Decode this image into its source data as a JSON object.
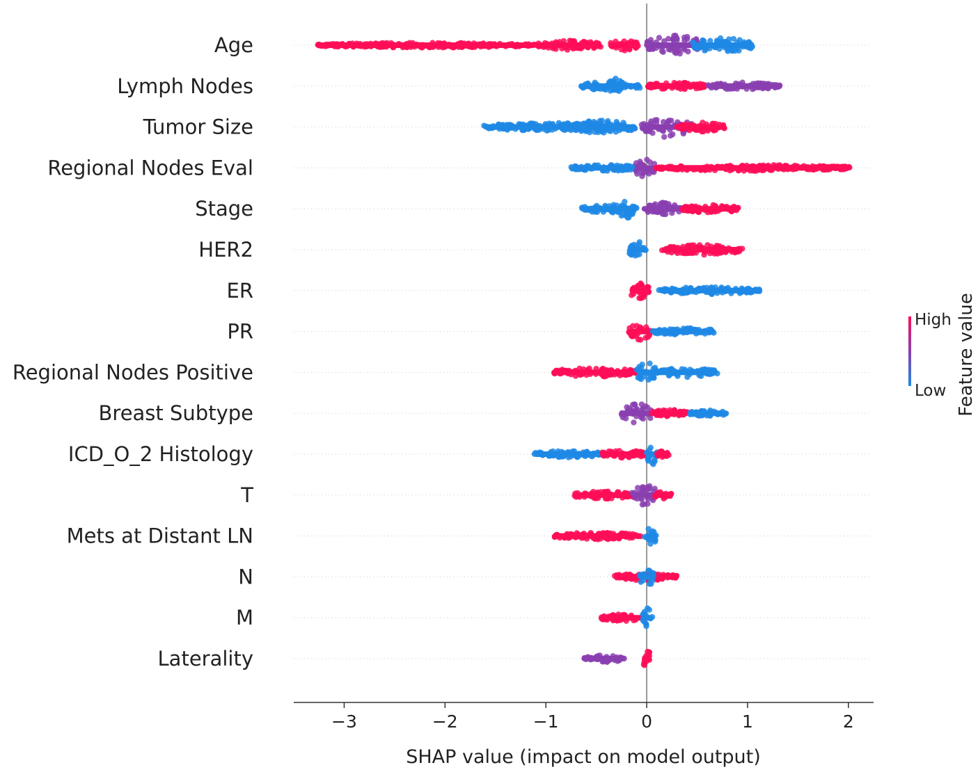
{
  "chart_data": {
    "type": "scatter",
    "subtype": "shap-beeswarm",
    "title": "",
    "xlabel": "SHAP value (impact on model output)",
    "ylabel": "",
    "xlim": [
      -3.5,
      2.25
    ],
    "xticks": [
      -3,
      -2,
      -1,
      0,
      1,
      2
    ],
    "xtick_labels": [
      "−3",
      "−2",
      "−1",
      "0",
      "1",
      "2"
    ],
    "grid": false,
    "colors": {
      "high": "#ff0d57",
      "low": "#1e88e5",
      "mid": "#8a3fb0",
      "zero_line": "#999999",
      "axis": "#333333"
    },
    "colorbar": {
      "title": "Feature value",
      "high_label": "High",
      "low_label": "Low"
    },
    "features": [
      {
        "name": "Age",
        "segments": [
          {
            "from": -3.28,
            "to": -1.12,
            "color": "high",
            "spread": 0.25
          },
          {
            "from": -1.12,
            "to": -0.45,
            "color": "high",
            "spread": 0.45
          },
          {
            "from": -0.38,
            "to": -0.08,
            "color": "high",
            "spread": 0.55
          },
          {
            "from": 0.0,
            "to": 0.55,
            "color": "mid",
            "spread": 1.0
          },
          {
            "from": 0.45,
            "to": 1.05,
            "color": "low",
            "spread": 0.75
          }
        ]
      },
      {
        "name": "Lymph Nodes",
        "segments": [
          {
            "from": -0.65,
            "to": -0.05,
            "color": "low",
            "spread": 0.45
          },
          {
            "from": -0.38,
            "to": -0.25,
            "color": "low",
            "spread": 0.9
          },
          {
            "from": 0.0,
            "to": 0.6,
            "color": "high",
            "spread": 0.35
          },
          {
            "from": 0.6,
            "to": 1.32,
            "color": "mid",
            "spread": 0.35
          }
        ]
      },
      {
        "name": "Tumor Size",
        "segments": [
          {
            "from": -1.62,
            "to": -0.2,
            "color": "low",
            "spread": 0.4
          },
          {
            "from": -0.85,
            "to": -0.1,
            "color": "low",
            "spread": 0.65
          },
          {
            "from": -0.05,
            "to": 0.45,
            "color": "mid",
            "spread": 1.0
          },
          {
            "from": 0.3,
            "to": 0.78,
            "color": "high",
            "spread": 0.45
          }
        ]
      },
      {
        "name": "Regional Nodes Eval",
        "segments": [
          {
            "from": -0.75,
            "to": -0.05,
            "color": "low",
            "spread": 0.3
          },
          {
            "from": -0.12,
            "to": 0.08,
            "color": "mid",
            "spread": 0.95
          },
          {
            "from": 0.08,
            "to": 2.02,
            "color": "high",
            "spread": 0.3
          }
        ]
      },
      {
        "name": "Stage",
        "segments": [
          {
            "from": -0.65,
            "to": -0.1,
            "color": "low",
            "spread": 0.4
          },
          {
            "from": -0.28,
            "to": -0.12,
            "color": "low",
            "spread": 0.95
          },
          {
            "from": -0.05,
            "to": 0.35,
            "color": "mid",
            "spread": 0.6
          },
          {
            "from": 0.35,
            "to": 0.92,
            "color": "high",
            "spread": 0.4
          }
        ]
      },
      {
        "name": "HER2",
        "segments": [
          {
            "from": -0.18,
            "to": 0.0,
            "color": "low",
            "spread": 0.8
          },
          {
            "from": 0.15,
            "to": 0.95,
            "color": "high",
            "spread": 0.5
          }
        ]
      },
      {
        "name": "ER",
        "segments": [
          {
            "from": -0.17,
            "to": 0.03,
            "color": "high",
            "spread": 0.8
          },
          {
            "from": 0.12,
            "to": 1.12,
            "color": "low",
            "spread": 0.35
          }
        ]
      },
      {
        "name": "PR",
        "segments": [
          {
            "from": -0.18,
            "to": 0.05,
            "color": "high",
            "spread": 0.85
          },
          {
            "from": 0.05,
            "to": 0.68,
            "color": "low",
            "spread": 0.35
          }
        ]
      },
      {
        "name": "Regional Nodes Positive",
        "segments": [
          {
            "from": -0.92,
            "to": -0.1,
            "color": "high",
            "spread": 0.45
          },
          {
            "from": -0.1,
            "to": 0.1,
            "color": "low",
            "spread": 1.0
          },
          {
            "from": 0.1,
            "to": 0.7,
            "color": "low",
            "spread": 0.45
          }
        ]
      },
      {
        "name": "Breast Subtype",
        "segments": [
          {
            "from": -0.25,
            "to": 0.05,
            "color": "mid",
            "spread": 1.0
          },
          {
            "from": 0.05,
            "to": 0.42,
            "color": "high",
            "spread": 0.35
          },
          {
            "from": 0.42,
            "to": 0.8,
            "color": "low",
            "spread": 0.3
          }
        ]
      },
      {
        "name": "ICD_O_2 Histology",
        "segments": [
          {
            "from": -1.12,
            "to": -0.45,
            "color": "low",
            "spread": 0.35
          },
          {
            "from": -0.45,
            "to": 0.0,
            "color": "high",
            "spread": 0.4
          },
          {
            "from": 0.0,
            "to": 0.12,
            "color": "low",
            "spread": 1.0
          },
          {
            "from": 0.1,
            "to": 0.22,
            "color": "high",
            "spread": 0.3
          }
        ]
      },
      {
        "name": "T",
        "segments": [
          {
            "from": -0.72,
            "to": -0.12,
            "color": "high",
            "spread": 0.4
          },
          {
            "from": -0.15,
            "to": 0.12,
            "color": "mid",
            "spread": 1.0
          },
          {
            "from": 0.08,
            "to": 0.25,
            "color": "high",
            "spread": 0.35
          }
        ]
      },
      {
        "name": "Mets at Distant LN",
        "segments": [
          {
            "from": -0.92,
            "to": -0.05,
            "color": "high",
            "spread": 0.35
          },
          {
            "from": -0.02,
            "to": 0.1,
            "color": "low",
            "spread": 0.95
          }
        ]
      },
      {
        "name": "N",
        "segments": [
          {
            "from": -0.32,
            "to": 0.3,
            "color": "high",
            "spread": 0.35
          },
          {
            "from": -0.07,
            "to": 0.07,
            "color": "low",
            "spread": 1.0
          }
        ]
      },
      {
        "name": "M",
        "segments": [
          {
            "from": -0.45,
            "to": -0.02,
            "color": "high",
            "spread": 0.35
          },
          {
            "from": -0.04,
            "to": 0.06,
            "color": "low",
            "spread": 1.0
          }
        ]
      },
      {
        "name": "Laterality",
        "segments": [
          {
            "from": -0.62,
            "to": -0.22,
            "color": "mid",
            "spread": 0.35
          },
          {
            "from": -0.04,
            "to": 0.04,
            "color": "high",
            "spread": 1.0
          }
        ]
      }
    ]
  }
}
